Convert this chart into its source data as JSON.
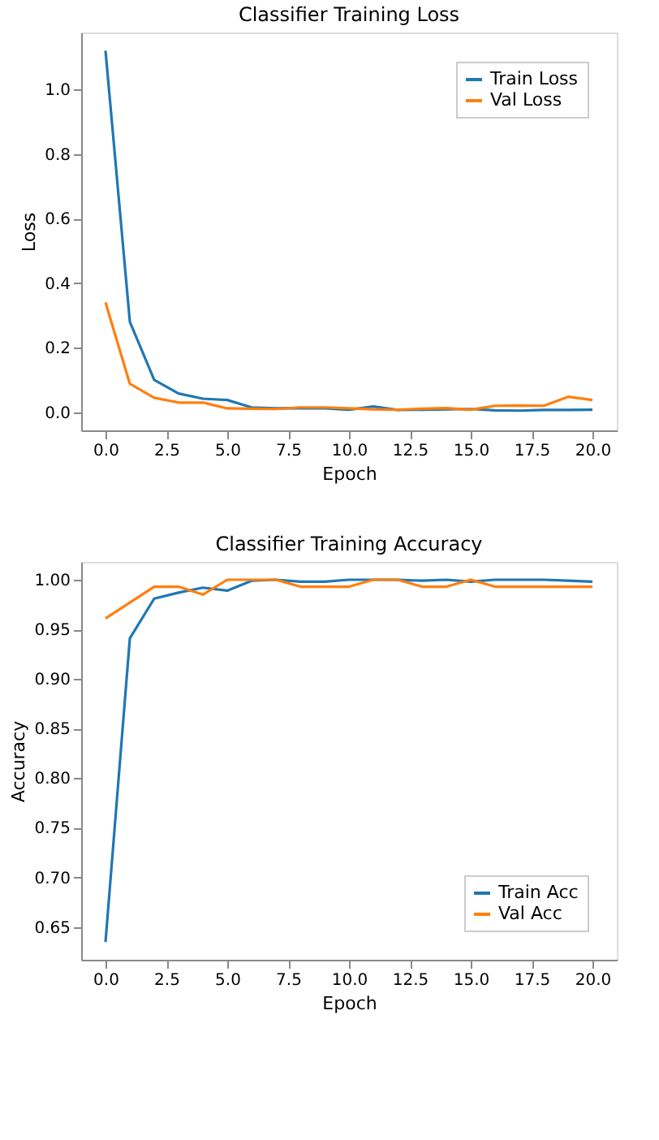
{
  "chart_data": [
    {
      "type": "line",
      "title": "Classifier Training Loss",
      "xlabel": "Epoch",
      "ylabel": "Loss",
      "x": [
        0,
        1,
        2,
        3,
        4,
        5,
        6,
        7,
        8,
        9,
        10,
        11,
        12,
        13,
        14,
        15,
        16,
        17,
        18,
        19,
        20
      ],
      "series": [
        {
          "name": "Train Loss",
          "color": "#1f77b4",
          "values": [
            1.12,
            0.28,
            0.1,
            0.058,
            0.042,
            0.038,
            0.015,
            0.012,
            0.013,
            0.012,
            0.008,
            0.018,
            0.007,
            0.008,
            0.009,
            0.01,
            0.006,
            0.005,
            0.007,
            0.007,
            0.008
          ]
        },
        {
          "name": "Val Loss",
          "color": "#ff7f0e",
          "values": [
            0.34,
            0.088,
            0.045,
            0.03,
            0.03,
            0.012,
            0.011,
            0.01,
            0.015,
            0.015,
            0.012,
            0.009,
            0.008,
            0.011,
            0.013,
            0.008,
            0.02,
            0.021,
            0.02,
            0.048,
            0.038
          ]
        }
      ],
      "xlim": [
        -1,
        21
      ],
      "xticks": [
        {
          "value": 0,
          "label": "0.0"
        },
        {
          "value": 2.5,
          "label": "2.5"
        },
        {
          "value": 5,
          "label": "5.0"
        },
        {
          "value": 7.5,
          "label": "7.5"
        },
        {
          "value": 10,
          "label": "10.0"
        },
        {
          "value": 12.5,
          "label": "12.5"
        },
        {
          "value": 15,
          "label": "15.0"
        },
        {
          "value": 17.5,
          "label": "17.5"
        },
        {
          "value": 20,
          "label": "20.0"
        }
      ],
      "ylim": [
        -0.056,
        1.176
      ],
      "yticks": [
        {
          "value": 0,
          "label": "0.0"
        },
        0.2,
        0.4,
        0.6,
        0.8,
        {
          "value": 1,
          "label": "1.0"
        }
      ],
      "grid": false,
      "legend": "top right",
      "marker": "none",
      "line_style": "solid"
    },
    {
      "type": "line",
      "title": "Classifier Training Accuracy",
      "xlabel": "Epoch",
      "ylabel": "Accuracy",
      "x": [
        0,
        1,
        2,
        3,
        4,
        5,
        6,
        7,
        8,
        9,
        10,
        11,
        12,
        13,
        14,
        15,
        16,
        17,
        18,
        19,
        20
      ],
      "series": [
        {
          "name": "Train Acc",
          "color": "#1f77b4",
          "values": [
            0.635,
            0.941,
            0.981,
            0.987,
            0.992,
            0.989,
            0.999,
            1.0,
            0.998,
            0.998,
            1.0,
            1.0,
            1.0,
            0.999,
            1.0,
            0.998,
            1.0,
            1.0,
            1.0,
            0.999,
            0.998
          ]
        },
        {
          "name": "Val Acc",
          "color": "#ff7f0e",
          "values": [
            0.961,
            0.977,
            0.993,
            0.993,
            0.985,
            1.0,
            1.0,
            1.0,
            0.993,
            0.993,
            0.993,
            1.0,
            1.0,
            0.993,
            0.993,
            1.0,
            0.993,
            0.993,
            0.993,
            0.993,
            0.993
          ]
        }
      ],
      "xlim": [
        -1,
        21
      ],
      "xticks": [
        {
          "value": 0,
          "label": "0.0"
        },
        {
          "value": 2.5,
          "label": "2.5"
        },
        {
          "value": 5,
          "label": "5.0"
        },
        {
          "value": 7.5,
          "label": "7.5"
        },
        {
          "value": 10,
          "label": "10.0"
        },
        {
          "value": 12.5,
          "label": "12.5"
        },
        {
          "value": 15,
          "label": "15.0"
        },
        {
          "value": 17.5,
          "label": "17.5"
        },
        {
          "value": 20,
          "label": "20.0"
        }
      ],
      "ylim": [
        0.617,
        1.018
      ],
      "yticks": [
        {
          "value": 0.65,
          "label": "0.65"
        },
        {
          "value": 0.7,
          "label": "0.70"
        },
        {
          "value": 0.75,
          "label": "0.75"
        },
        {
          "value": 0.8,
          "label": "0.80"
        },
        {
          "value": 0.85,
          "label": "0.85"
        },
        {
          "value": 0.9,
          "label": "0.90"
        },
        {
          "value": 0.95,
          "label": "0.95"
        },
        {
          "value": 1.0,
          "label": "1.00"
        }
      ],
      "grid": false,
      "legend": "bottom right",
      "marker": "none",
      "line_style": "solid"
    }
  ]
}
